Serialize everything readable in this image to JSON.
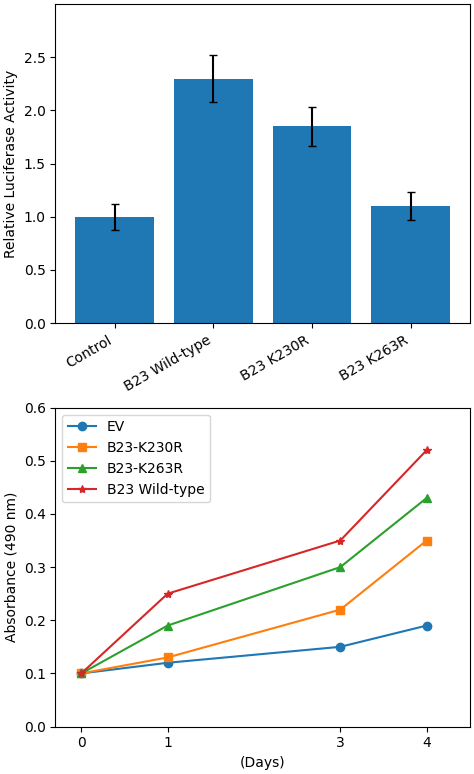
{
  "chart_data": [
    {
      "type": "bar",
      "categories": [
        "Control",
        "B23 Wild-type",
        "B23 K230R",
        "B23 K263R"
      ],
      "values": [
        1.0,
        2.3,
        1.85,
        1.1
      ],
      "errors": [
        0.12,
        0.22,
        0.18,
        0.13
      ],
      "ylabel": "Relative Luciferase Activity",
      "ylim": [
        0,
        3.0
      ],
      "yticks": [
        {
          "value": 0,
          "label": "0.0"
        },
        0.5,
        {
          "value": 1.0,
          "label": "1.0"
        },
        1.5,
        {
          "value": 2.0,
          "label": "2.0"
        },
        2.5
      ]
    },
    {
      "type": "line",
      "x": [
        0,
        1,
        3,
        4
      ],
      "series": [
        {
          "name": "EV",
          "values": [
            0.1,
            0.12,
            0.15,
            0.19
          ],
          "marker": "circle"
        },
        {
          "name": "B23-K230R",
          "values": [
            0.1,
            0.13,
            0.22,
            0.35
          ],
          "marker": "square"
        },
        {
          "name": "B23-K263R",
          "values": [
            0.1,
            0.19,
            0.3,
            0.43
          ],
          "marker": "triangle"
        },
        {
          "name": "B23 Wild-type",
          "values": [
            0.1,
            0.25,
            0.35,
            0.52
          ],
          "marker": "star"
        }
      ],
      "xlabel": "(Days)",
      "ylabel": "Absorbance (490 nm)",
      "xlim": [
        -0.3,
        4.5
      ],
      "xticks": [
        0,
        1,
        3,
        4
      ],
      "ylim": [
        0,
        0.6
      ],
      "yticks": [
        {
          "value": 0,
          "label": "0.0"
        },
        0.1,
        0.2,
        0.3,
        0.4,
        0.5,
        0.6
      ],
      "legend": "upper left"
    }
  ]
}
